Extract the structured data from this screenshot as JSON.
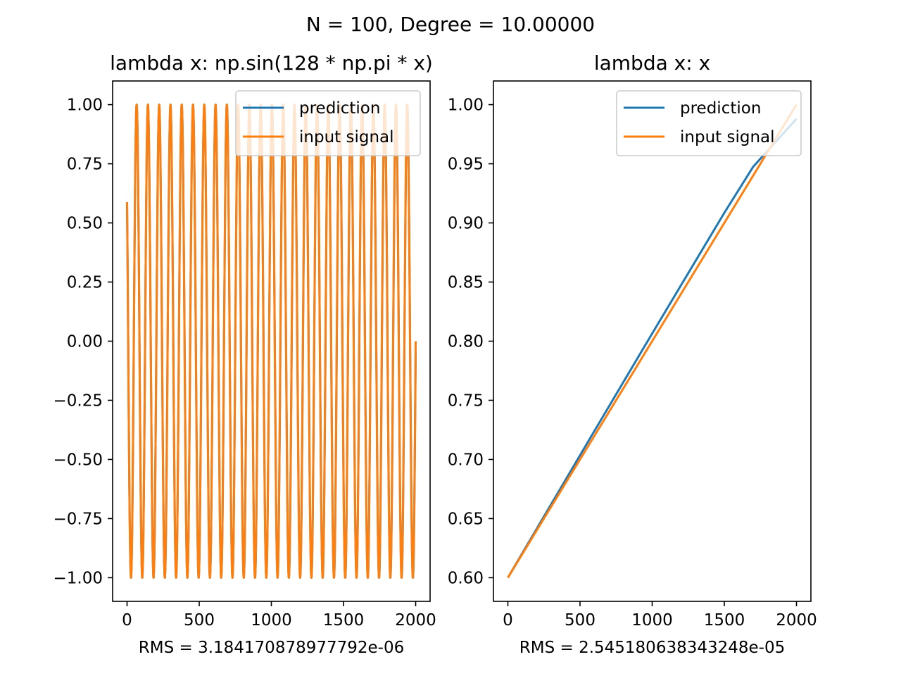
{
  "figure": {
    "suptitle": "N = 100, Degree = 10.00000"
  },
  "chart_data": [
    {
      "type": "line",
      "title": "lambda x: np.sin(128 * np.pi * x)",
      "xlabel": "RMS = 3.184170878977792e-06",
      "ylabel": "",
      "xlim": [
        -100,
        2100
      ],
      "ylim": [
        -1.1,
        1.1
      ],
      "xticks": [
        0,
        500,
        1000,
        1500,
        2000
      ],
      "xtick_labels": [
        "0",
        "500",
        "1000",
        "1500",
        "2000"
      ],
      "yticks": [
        1.0,
        0.75,
        0.5,
        0.25,
        0.0,
        -0.25,
        -0.5,
        -0.75,
        -1.0
      ],
      "ytick_labels": [
        "1.00",
        "0.75",
        "0.50",
        "0.25",
        "0.00",
        "−0.25",
        "−0.50",
        "−0.75",
        "−1.00"
      ],
      "legend": "upper right",
      "grid": false,
      "series": [
        {
          "name": "prediction",
          "color": "#1f77b4",
          "function": "sin",
          "x_range": [
            0,
            2000
          ],
          "x_start": 0.6,
          "x_end": 0.9999,
          "frequency": 128
        },
        {
          "name": "input signal",
          "color": "#ff7f0e",
          "function": "sin",
          "x_range": [
            0,
            2000
          ],
          "x_start": 0.6,
          "x_end": 1.0,
          "frequency": 128
        }
      ]
    },
    {
      "type": "line",
      "title": "lambda x: x",
      "xlabel": "RMS = 2.545180638343248e-05",
      "ylabel": "",
      "xlim": [
        -100,
        2100
      ],
      "ylim": [
        0.58,
        1.02
      ],
      "xticks": [
        0,
        500,
        1000,
        1500,
        2000
      ],
      "xtick_labels": [
        "0",
        "500",
        "1000",
        "1500",
        "2000"
      ],
      "yticks": [
        1.0,
        0.95,
        0.9,
        0.85,
        0.8,
        0.75,
        0.7,
        0.65,
        0.6
      ],
      "ytick_labels": [
        "1.00",
        "0.95",
        "0.90",
        "0.85",
        "0.80",
        "0.75",
        "0.70",
        "0.65",
        "0.60"
      ],
      "legend": "upper right",
      "grid": false,
      "series": [
        {
          "name": "prediction",
          "color": "#1f77b4",
          "x": [
            0,
            500,
            1000,
            1500,
            1700,
            2000
          ],
          "y": [
            0.6,
            0.7035,
            0.8065,
            0.9085,
            0.9475,
            0.988
          ]
        },
        {
          "name": "input signal",
          "color": "#ff7f0e",
          "x": [
            0,
            500,
            1000,
            1500,
            2000
          ],
          "y": [
            0.6,
            0.7,
            0.8,
            0.9,
            1.0
          ]
        }
      ]
    }
  ]
}
